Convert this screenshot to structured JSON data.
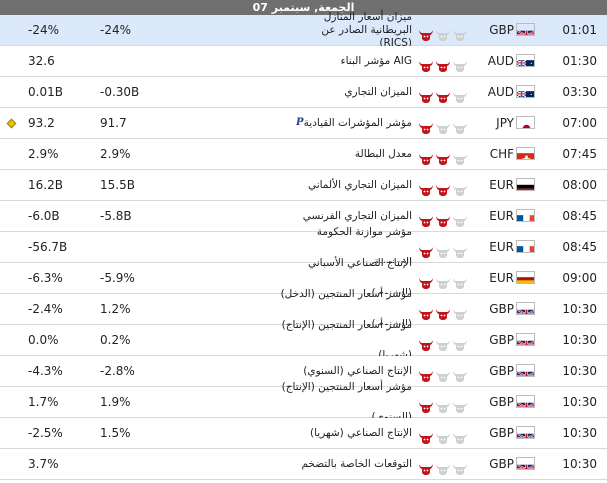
{
  "header": {
    "title": "الجمعة, سبتمبر 07"
  },
  "colors": {
    "bull_active": "#c0151b",
    "bull_inactive": "#cfcfcf",
    "highlight": "#dbe9fb"
  },
  "rows": [
    {
      "time": "01:01",
      "flag": "gb",
      "currency": "GBP",
      "bulls": 1,
      "event_line1": "ميزان أسعار المنازل البريطانية الصادر عن",
      "event_line2": "(RICS)",
      "marker": "",
      "forecast": "-24%",
      "actual": "-24%",
      "highlight": true,
      "diamond": false
    },
    {
      "time": "01:30",
      "flag": "au",
      "currency": "AUD",
      "bulls": 2,
      "event_line1": "AIG مؤشر البناء",
      "event_line2": "",
      "marker": "",
      "forecast": "",
      "actual": "32.6",
      "highlight": false,
      "diamond": false
    },
    {
      "time": "03:30",
      "flag": "au",
      "currency": "AUD",
      "bulls": 2,
      "event_line1": "الميزان التجاري",
      "event_line2": "",
      "marker": "",
      "forecast": "-0.30B",
      "actual": "0.01B",
      "highlight": false,
      "diamond": false
    },
    {
      "time": "07:00",
      "flag": "jp",
      "currency": "JPY",
      "bulls": 1,
      "event_line1": "مؤشر المؤشرات القيادية",
      "event_line2": "",
      "marker": "P",
      "forecast": "91.7",
      "actual": "93.2",
      "highlight": false,
      "diamond": true
    },
    {
      "time": "07:45",
      "flag": "ch",
      "currency": "CHF",
      "bulls": 2,
      "event_line1": "معدل البطالة",
      "event_line2": "",
      "marker": "",
      "forecast": "2.9%",
      "actual": "2.9%",
      "highlight": false,
      "diamond": false
    },
    {
      "time": "08:00",
      "flag": "de",
      "currency": "EUR",
      "bulls": 2,
      "event_line1": "الميزان التجاري الألماني",
      "event_line2": "",
      "marker": "",
      "forecast": "15.5B",
      "actual": "16.2B",
      "highlight": false,
      "diamond": false
    },
    {
      "time": "08:45",
      "flag": "fr",
      "currency": "EUR",
      "bulls": 2,
      "event_line1": "الميزان التجاري الفرنسي",
      "event_line2": "",
      "marker": "",
      "forecast": "-5.8B",
      "actual": "-6.0B",
      "highlight": false,
      "diamond": false
    },
    {
      "time": "08:45",
      "flag": "fr",
      "currency": "EUR",
      "bulls": 1,
      "event_line1": "مؤشر موازنة الحكومة الفرنسية",
      "event_line2": "",
      "marker": "",
      "forecast": "",
      "actual": "-56.7B",
      "highlight": false,
      "diamond": false
    },
    {
      "time": "09:00",
      "flag": "es",
      "currency": "EUR",
      "bulls": 1,
      "event_line1": "الإنتاج الصناعي الأسباني (السنوي)",
      "event_line2": "",
      "marker": "",
      "forecast": "-5.9%",
      "actual": "-6.3%",
      "highlight": false,
      "diamond": false
    },
    {
      "time": "10:30",
      "flag": "gb",
      "currency": "GBP",
      "bulls": 2,
      "event_line1": "مؤشر أسعار المنتجين (الدخل) (السنوي)",
      "event_line2": "",
      "marker": "",
      "forecast": "1.2%",
      "actual": "-2.4%",
      "highlight": false,
      "diamond": false
    },
    {
      "time": "10:30",
      "flag": "gb",
      "currency": "GBP",
      "bulls": 1,
      "event_line1": "مؤشر أسعار المنتجين (الإنتاج) (شهريا)",
      "event_line2": "",
      "marker": "",
      "forecast": "0.2%",
      "actual": "0.0%",
      "highlight": false,
      "diamond": false
    },
    {
      "time": "10:30",
      "flag": "gb",
      "currency": "GBP",
      "bulls": 1,
      "event_line1": "الإنتاج الصناعي (السنوي)",
      "event_line2": "",
      "marker": "",
      "forecast": "-2.8%",
      "actual": "-4.3%",
      "highlight": false,
      "diamond": false
    },
    {
      "time": "10:30",
      "flag": "gb",
      "currency": "GBP",
      "bulls": 1,
      "event_line1": "مؤشر أسعار المنتجين (الإنتاج) (السنوي)",
      "event_line2": "",
      "marker": "",
      "forecast": "1.9%",
      "actual": "1.7%",
      "highlight": false,
      "diamond": false
    },
    {
      "time": "10:30",
      "flag": "gb",
      "currency": "GBP",
      "bulls": 1,
      "event_line1": "الإنتاج الصناعي (شهريا)",
      "event_line2": "",
      "marker": "",
      "forecast": "1.5%",
      "actual": "-2.5%",
      "highlight": false,
      "diamond": false
    },
    {
      "time": "10:30",
      "flag": "gb",
      "currency": "GBP",
      "bulls": 1,
      "event_line1": "التوقعات الخاصة بالتضخم",
      "event_line2": "",
      "marker": "",
      "forecast": "",
      "actual": "3.7%",
      "highlight": false,
      "diamond": false
    }
  ]
}
